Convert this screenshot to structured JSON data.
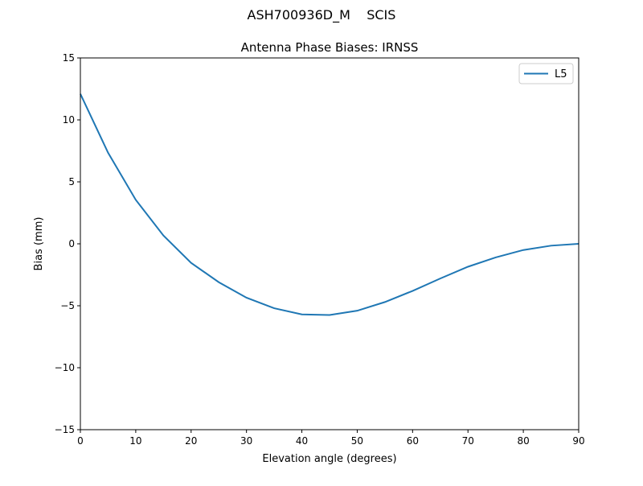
{
  "chart_data": {
    "type": "line",
    "suptitle": "ASH700936D_M    SCIS",
    "title": "Antenna Phase Biases: IRNSS",
    "xlabel": "Elevation angle (degrees)",
    "ylabel": "Bias (mm)",
    "xlim": [
      0,
      90
    ],
    "ylim": [
      -15,
      15
    ],
    "xticks": [
      0,
      10,
      20,
      30,
      40,
      50,
      60,
      70,
      80,
      90
    ],
    "yticks": [
      -15,
      -10,
      -5,
      0,
      5,
      10,
      15
    ],
    "ytick_labels": [
      "−15",
      "−10",
      "−5",
      "0",
      "5",
      "10",
      "15"
    ],
    "grid": false,
    "legend_placement": "top-right",
    "series": [
      {
        "name": "L5",
        "color": "#1f77b4",
        "x": [
          0,
          5,
          10,
          15,
          20,
          25,
          30,
          35,
          40,
          45,
          50,
          55,
          60,
          65,
          70,
          75,
          80,
          85,
          90
        ],
        "y": [
          12.1,
          7.35,
          3.55,
          0.67,
          -1.54,
          -3.1,
          -4.35,
          -5.2,
          -5.7,
          -5.75,
          -5.4,
          -4.7,
          -3.8,
          -2.8,
          -1.85,
          -1.1,
          -0.5,
          -0.15,
          0.0
        ]
      }
    ]
  }
}
